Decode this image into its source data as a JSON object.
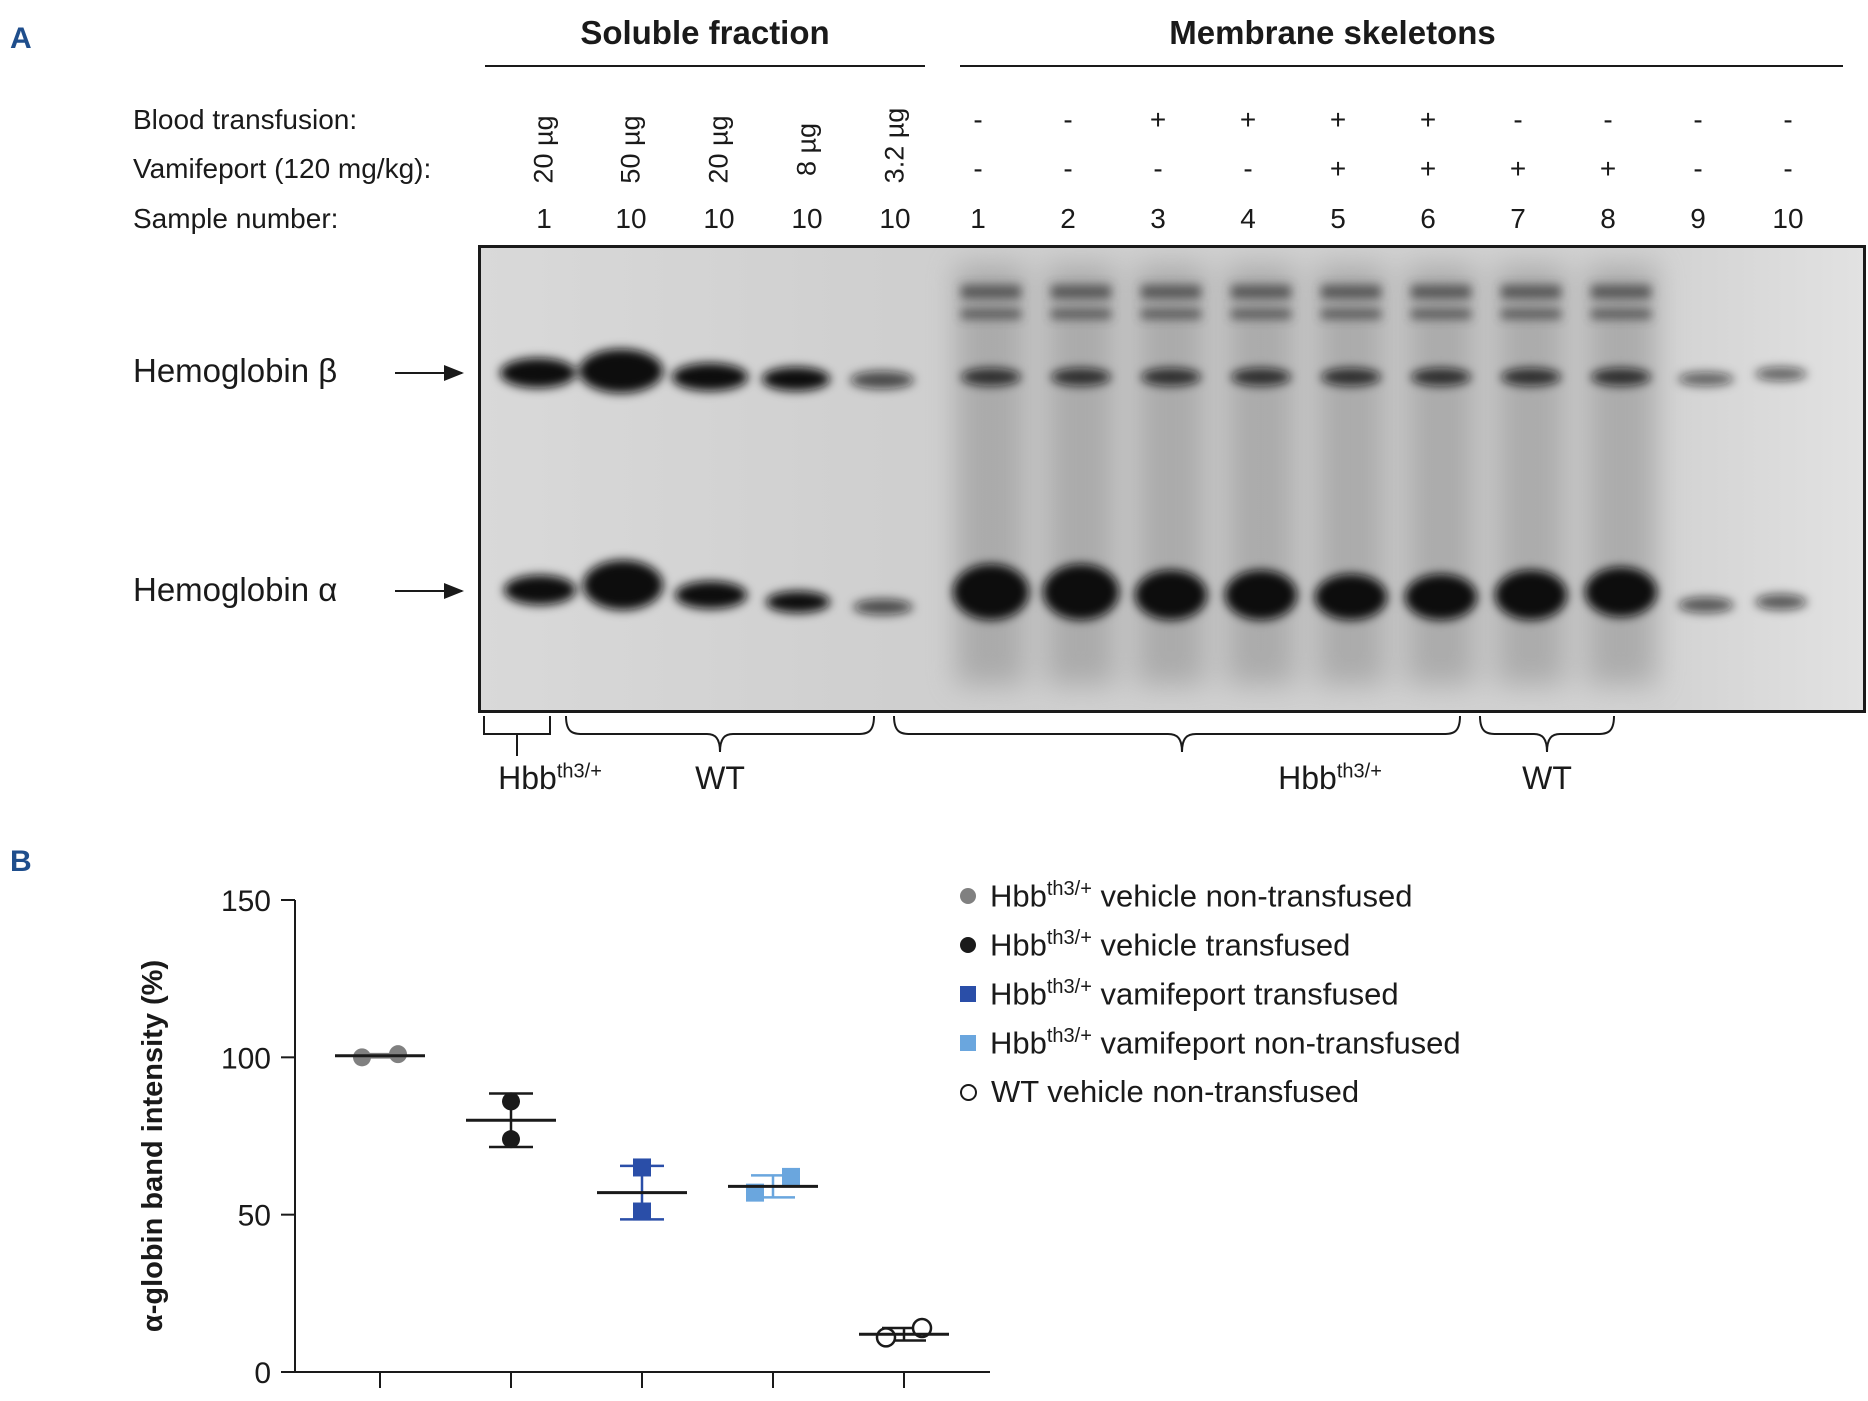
{
  "panel_a": {
    "label": "A",
    "header_soluble": "Soluble fraction",
    "header_membrane": "Membrane skeletons",
    "row_transfusion": "Blood transfusion:",
    "row_vamifeport": "Vamifeport (120 mg/kg):",
    "row_sample": "Sample number:",
    "soluble_amounts": [
      "20 µg",
      "50 µg",
      "20 µg",
      "8 µg",
      "3.2 µg"
    ],
    "soluble_samples": [
      "1",
      "10",
      "10",
      "10",
      "10"
    ],
    "membrane_transfusion": [
      "-",
      "-",
      "+",
      "+",
      "+",
      "+",
      "-",
      "-",
      "-",
      "-"
    ],
    "membrane_vamifeport": [
      "-",
      "-",
      "-",
      "-",
      "+",
      "+",
      "+",
      "+",
      "-",
      "-"
    ],
    "membrane_samples": [
      "1",
      "2",
      "3",
      "4",
      "5",
      "6",
      "7",
      "8",
      "9",
      "10"
    ],
    "band_beta": "Hemoglobin β",
    "band_alpha": "Hemoglobin α",
    "group_hbb_base": "Hbb",
    "group_hbb_sup": "th3/+",
    "group_wt": "WT"
  },
  "panel_b": {
    "label": "B"
  },
  "chart_data": {
    "type": "scatter",
    "title": "",
    "xlabel": "",
    "ylabel": "α-globin band intensity (%)",
    "ylim": [
      0,
      150
    ],
    "yticks": [
      0,
      50,
      100,
      150
    ],
    "grid": false,
    "legend_position": "top-right",
    "series": [
      {
        "name": "Hbbth3/+ vehicle non-transfused",
        "legend_base": "Hbb",
        "legend_sup": "th3/+",
        "legend_rest": " vehicle non-transfused",
        "marker": "circle",
        "color": "#808080",
        "values": [
          100,
          101
        ],
        "mean": 100.5,
        "err": 0.5
      },
      {
        "name": "Hbbth3/+ vehicle transfused",
        "legend_base": "Hbb",
        "legend_sup": "th3/+",
        "legend_rest": " vehicle transfused",
        "marker": "circle",
        "color": "#1a1a1a",
        "values": [
          86,
          74
        ],
        "mean": 80,
        "err": 8.5
      },
      {
        "name": "Hbbth3/+ vamifeport transfused",
        "legend_base": "Hbb",
        "legend_sup": "th3/+",
        "legend_rest": " vamifeport transfused",
        "marker": "square",
        "color": "#2a4ea8",
        "values": [
          65,
          51
        ],
        "mean": 57,
        "err": 8.5
      },
      {
        "name": "Hbbth3/+ vamifeport non-transfused",
        "legend_base": "Hbb",
        "legend_sup": "th3/+",
        "legend_rest": " vamifeport non-transfused",
        "marker": "square",
        "color": "#6aa6de",
        "values": [
          57,
          62
        ],
        "mean": 59,
        "err": 3.5
      },
      {
        "name": "WT vehicle non-transfused",
        "legend_base": "WT vehicle non-transfused",
        "legend_sup": "",
        "legend_rest": "",
        "marker": "open-circle",
        "color": "#1a1a1a",
        "values": [
          11,
          14
        ],
        "mean": 12,
        "err": 2
      }
    ]
  }
}
